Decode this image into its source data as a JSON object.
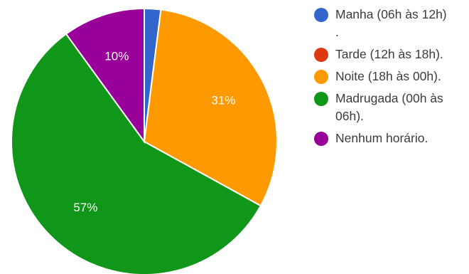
{
  "chart_data": {
    "type": "pie",
    "categories": [
      "Manha (06h às 12h)\n.",
      "Tarde (12h às 18h).",
      "Noite (18h às 00h).",
      "Madrugada (00h às\n06h).",
      "Nenhum horário."
    ],
    "values": [
      2,
      0,
      31,
      57,
      10
    ],
    "colors": [
      "#3366cc",
      "#dc3912",
      "#ff9900",
      "#109618",
      "#990099"
    ],
    "labels": [
      "",
      "",
      "31%",
      "57%",
      "10%"
    ],
    "label_colors": [
      "#ffffff",
      "#ffffff",
      "#ffffff",
      "#ffffff",
      "#ffffff"
    ],
    "start_angle_deg": 90,
    "direction": "clockwise",
    "legend_position": "right"
  }
}
